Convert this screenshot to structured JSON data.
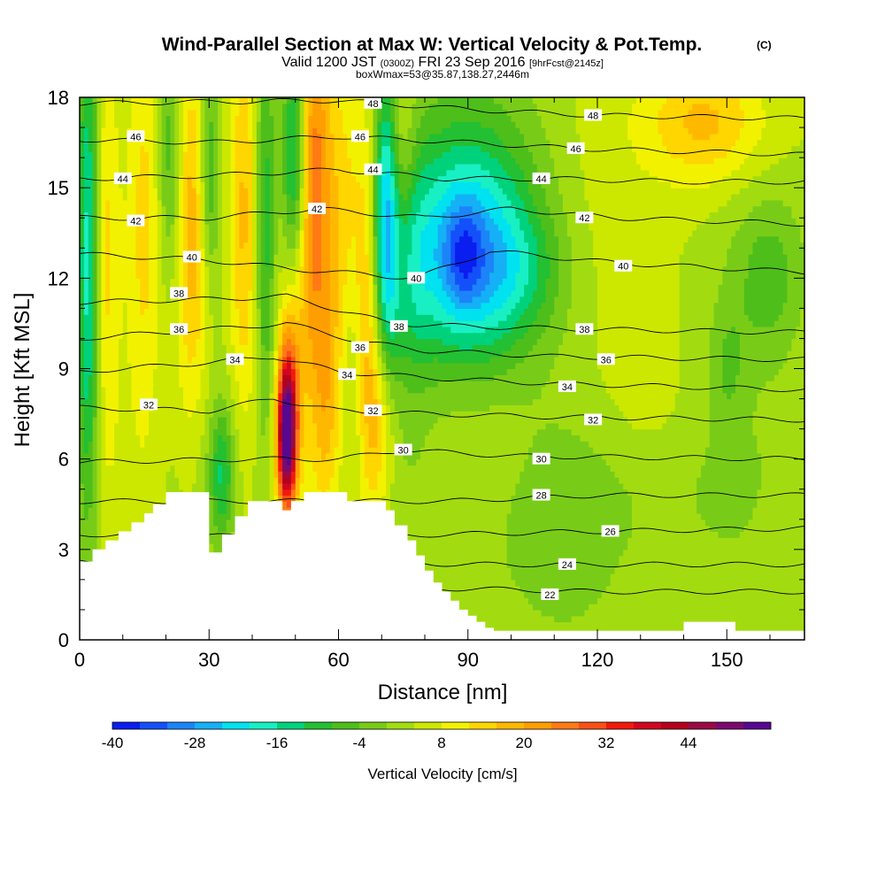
{
  "title": {
    "main": "Wind-Parallel Section at Max W: Vertical Velocity & Pot.Temp.",
    "copyright": "(C)",
    "line2_a": "Valid 1200 JST",
    "line2_b": "(0300Z)",
    "line2_c": "FRI 23 Sep 2016",
    "line2_d": "[9hrFcst@2145z]",
    "line3": "boxWmax=53@35.87,138.27,2446m"
  },
  "chart_data": {
    "type": "heatmap",
    "xlabel": "Distance [nm]",
    "ylabel": "Height [Kft MSL]",
    "xlim": [
      0,
      168
    ],
    "ylim": [
      0,
      18
    ],
    "x_ticks": [
      0,
      30,
      60,
      90,
      120,
      150
    ],
    "y_ticks": [
      0,
      3,
      6,
      9,
      12,
      15,
      18
    ],
    "colorbar": {
      "label": "Vertical Velocity [cm/s]",
      "levels": [
        -40,
        -36,
        -32,
        -28,
        -24,
        -20,
        -16,
        -12,
        -8,
        -4,
        0,
        4,
        8,
        12,
        16,
        20,
        24,
        28,
        32,
        36,
        40,
        44,
        48,
        52
      ],
      "tick_labels": [
        -40,
        -28,
        -16,
        -4,
        8,
        20,
        32,
        44
      ],
      "colors": [
        "#0a1ef0",
        "#1450fa",
        "#1c84f8",
        "#15b0f6",
        "#00e2f0",
        "#18f0c4",
        "#00d27c",
        "#22c032",
        "#4ebe1a",
        "#78cc18",
        "#a2dc10",
        "#cce800",
        "#f2f200",
        "#ffd600",
        "#ffb800",
        "#ff9e00",
        "#ff7a14",
        "#f85016",
        "#f21a0a",
        "#d00620",
        "#b4001c",
        "#9a0a42",
        "#7c0a6e",
        "#560890"
      ]
    },
    "terrain_profile": {
      "x": [
        0,
        3,
        3,
        6,
        6,
        9,
        9,
        12,
        12,
        15,
        15,
        17,
        17,
        20,
        20,
        30,
        30,
        33,
        33,
        36,
        36,
        39,
        39,
        47,
        47,
        49,
        49,
        52,
        52,
        62,
        62,
        71,
        71,
        73,
        73,
        76,
        76,
        78,
        78,
        80,
        80,
        82,
        82,
        84,
        84,
        86,
        86,
        88,
        88,
        90,
        90,
        92,
        92,
        94,
        94,
        96,
        96,
        98,
        98,
        140,
        140,
        152,
        152,
        168,
        168
      ],
      "y_kft": [
        2.6,
        2.6,
        3.0,
        3.0,
        3.3,
        3.3,
        3.6,
        3.6,
        3.9,
        3.9,
        4.2,
        4.2,
        4.5,
        4.5,
        4.9,
        4.9,
        2.9,
        2.9,
        3.5,
        3.5,
        4.1,
        4.1,
        4.6,
        4.6,
        4.3,
        4.3,
        4.6,
        4.6,
        4.9,
        4.9,
        4.6,
        4.6,
        4.3,
        4.3,
        3.8,
        3.8,
        3.3,
        3.3,
        2.8,
        2.8,
        2.3,
        2.3,
        1.9,
        1.9,
        1.6,
        1.6,
        1.3,
        1.3,
        1.0,
        1.0,
        0.8,
        0.8,
        0.6,
        0.6,
        0.4,
        0.4,
        0.3,
        0.3,
        0.3,
        0.3,
        0.6,
        0.6,
        0.3,
        0.3,
        0.6
      ]
    },
    "w_features": [
      {
        "x": 2,
        "y": 12.5,
        "sx": 1.8,
        "sy": 6,
        "w": -22
      },
      {
        "x": 6,
        "y": 13,
        "sx": 2.2,
        "sy": 5,
        "w": 10
      },
      {
        "x": 15,
        "y": 14,
        "sx": 3,
        "sy": 5,
        "w": 10
      },
      {
        "x": 21,
        "y": 16,
        "sx": 2,
        "sy": 3,
        "w": -12
      },
      {
        "x": 26,
        "y": 13.5,
        "sx": 3,
        "sy": 4.5,
        "w": 16
      },
      {
        "x": 30,
        "y": 15.5,
        "sx": 1.6,
        "sy": 2.5,
        "w": -14
      },
      {
        "x": 38,
        "y": 14,
        "sx": 2.5,
        "sy": 5,
        "w": 14
      },
      {
        "x": 33,
        "y": 5.5,
        "sx": 2,
        "sy": 1.5,
        "w": -14
      },
      {
        "x": 43,
        "y": 14,
        "sx": 1.6,
        "sy": 5,
        "w": -14
      },
      {
        "x": 48,
        "y": 6.8,
        "sx": 1.6,
        "sy": 1.8,
        "w": 52
      },
      {
        "x": 49,
        "y": 9.5,
        "sx": 2,
        "sy": 2.5,
        "w": 10
      },
      {
        "x": 50,
        "y": 16,
        "sx": 2,
        "sy": 3,
        "w": -24
      },
      {
        "x": 54,
        "y": 15,
        "sx": 3,
        "sy": 5,
        "w": 24
      },
      {
        "x": 61,
        "y": 12.5,
        "sx": 3,
        "sy": 5,
        "w": 12
      },
      {
        "x": 57,
        "y": 7.5,
        "sx": 2,
        "sy": 2.5,
        "w": 8
      },
      {
        "x": 63,
        "y": 9,
        "sx": 2,
        "sy": 3,
        "w": -8
      },
      {
        "x": 67,
        "y": 11,
        "sx": 2.5,
        "sy": 5,
        "w": 16
      },
      {
        "x": 70,
        "y": 7,
        "sx": 2.5,
        "sy": 2,
        "w": 10
      },
      {
        "x": 71,
        "y": 14,
        "sx": 2.2,
        "sy": 3.5,
        "w": -28
      },
      {
        "x": 74,
        "y": 16,
        "sx": 2.5,
        "sy": 3,
        "w": 10
      },
      {
        "x": 77,
        "y": 12,
        "sx": 3,
        "sy": 3,
        "w": -6
      },
      {
        "x": 90,
        "y": 12.6,
        "sx": 11,
        "sy": 2.6,
        "w": -28
      },
      {
        "x": 89,
        "y": 12.8,
        "sx": 3,
        "sy": 1.2,
        "w": -10
      },
      {
        "x": 102,
        "y": 12.2,
        "sx": 8,
        "sy": 1.4,
        "w": -6
      },
      {
        "x": 145,
        "y": 17.2,
        "sx": 10,
        "sy": 1.5,
        "w": 14
      },
      {
        "x": 90,
        "y": 16,
        "sx": 12,
        "sy": 3,
        "w": -6
      },
      {
        "x": 120,
        "y": 14,
        "sx": 10,
        "sy": 5,
        "w": 3
      },
      {
        "x": 160,
        "y": 12,
        "sx": 6,
        "sy": 2,
        "w": -9
      },
      {
        "x": 150,
        "y": 9,
        "sx": 3,
        "sy": 1.5,
        "w": -6
      },
      {
        "x": 110,
        "y": 3,
        "sx": 20,
        "sy": 2,
        "w": -4
      },
      {
        "x": 130,
        "y": 5,
        "sx": 20,
        "sy": 1.5,
        "w": -3
      }
    ],
    "theta_contours": [
      {
        "label": "22",
        "shown": true,
        "y_profile": [
          [
            0,
            1.7
          ],
          [
            60,
            1.7
          ],
          [
            90,
            1.7
          ],
          [
            120,
            1.6
          ],
          [
            168,
            1.6
          ]
        ]
      },
      {
        "label": "24",
        "shown": true,
        "y_profile": [
          [
            0,
            2.6
          ],
          [
            60,
            2.6
          ],
          [
            90,
            2.5
          ],
          [
            120,
            2.5
          ],
          [
            168,
            2.5
          ]
        ]
      },
      {
        "label": "26",
        "shown": true,
        "y_profile": [
          [
            0,
            3.5
          ],
          [
            60,
            3.4
          ],
          [
            85,
            3.5
          ],
          [
            120,
            3.6
          ],
          [
            168,
            3.7
          ]
        ]
      },
      {
        "label": "28",
        "shown": true,
        "y_profile": [
          [
            0,
            4.6
          ],
          [
            60,
            4.6
          ],
          [
            85,
            4.6
          ],
          [
            120,
            4.8
          ],
          [
            168,
            4.8
          ]
        ]
      },
      {
        "label": "30",
        "shown": true,
        "y_profile": [
          [
            0,
            5.9
          ],
          [
            40,
            6.0
          ],
          [
            60,
            6.0
          ],
          [
            75,
            6.3
          ],
          [
            100,
            6.1
          ],
          [
            168,
            6.0
          ]
        ]
      },
      {
        "label": "32",
        "shown": true,
        "y_profile": [
          [
            0,
            7.7
          ],
          [
            30,
            7.6
          ],
          [
            45,
            8.0
          ],
          [
            60,
            7.6
          ],
          [
            80,
            7.5
          ],
          [
            110,
            7.4
          ],
          [
            168,
            7.3
          ]
        ]
      },
      {
        "label": "34",
        "shown": true,
        "y_profile": [
          [
            0,
            8.9
          ],
          [
            30,
            9.2
          ],
          [
            45,
            9.4
          ],
          [
            60,
            8.9
          ],
          [
            80,
            8.7
          ],
          [
            110,
            8.5
          ],
          [
            168,
            8.3
          ]
        ]
      },
      {
        "label": "36",
        "shown": true,
        "y_profile": [
          [
            0,
            10.0
          ],
          [
            30,
            10.3
          ],
          [
            48,
            10.5
          ],
          [
            65,
            9.9
          ],
          [
            80,
            9.6
          ],
          [
            110,
            9.4
          ],
          [
            168,
            9.3
          ]
        ]
      },
      {
        "label": "38",
        "shown": true,
        "y_profile": [
          [
            0,
            11.2
          ],
          [
            30,
            11.3
          ],
          [
            48,
            11.4
          ],
          [
            72,
            10.5
          ],
          [
            90,
            10.4
          ],
          [
            120,
            10.3
          ],
          [
            168,
            10.2
          ]
        ]
      },
      {
        "label": "40",
        "shown": true,
        "y_profile": [
          [
            0,
            12.8
          ],
          [
            30,
            12.6
          ],
          [
            50,
            12.3
          ],
          [
            78,
            12.0
          ],
          [
            95,
            12.9
          ],
          [
            125,
            12.5
          ],
          [
            168,
            12.2
          ]
        ]
      },
      {
        "label": "42",
        "shown": true,
        "y_profile": [
          [
            0,
            14.0
          ],
          [
            30,
            14.0
          ],
          [
            55,
            14.3
          ],
          [
            80,
            14.0
          ],
          [
            100,
            14.3
          ],
          [
            125,
            14.0
          ],
          [
            168,
            13.8
          ]
        ]
      },
      {
        "label": "44",
        "shown": true,
        "y_profile": [
          [
            0,
            15.3
          ],
          [
            30,
            15.4
          ],
          [
            60,
            15.6
          ],
          [
            85,
            15.3
          ],
          [
            110,
            15.3
          ],
          [
            140,
            15.2
          ],
          [
            168,
            15.2
          ]
        ]
      },
      {
        "label": "46",
        "shown": true,
        "y_profile": [
          [
            0,
            16.6
          ],
          [
            30,
            16.5
          ],
          [
            60,
            16.7
          ],
          [
            90,
            16.5
          ],
          [
            115,
            16.3
          ],
          [
            168,
            16.1
          ]
        ]
      },
      {
        "label": "48",
        "shown": true,
        "y_profile": [
          [
            0,
            17.8
          ],
          [
            60,
            17.9
          ],
          [
            90,
            17.6
          ],
          [
            120,
            17.4
          ],
          [
            168,
            17.3
          ]
        ]
      }
    ],
    "contour_labels": [
      {
        "text": "22",
        "x": 109,
        "y": 1.5
      },
      {
        "text": "24",
        "x": 113,
        "y": 2.5
      },
      {
        "text": "26",
        "x": 123,
        "y": 3.6
      },
      {
        "text": "28",
        "x": 107,
        "y": 4.8
      },
      {
        "text": "30",
        "x": 107,
        "y": 6.0
      },
      {
        "text": "30",
        "x": 75,
        "y": 6.3
      },
      {
        "text": "32",
        "x": 119,
        "y": 7.3
      },
      {
        "text": "32",
        "x": 68,
        "y": 7.6
      },
      {
        "text": "32",
        "x": 16,
        "y": 7.8
      },
      {
        "text": "34",
        "x": 113,
        "y": 8.4
      },
      {
        "text": "34",
        "x": 62,
        "y": 8.8
      },
      {
        "text": "34",
        "x": 36,
        "y": 9.3
      },
      {
        "text": "36",
        "x": 122,
        "y": 9.3
      },
      {
        "text": "36",
        "x": 65,
        "y": 9.7
      },
      {
        "text": "36",
        "x": 23,
        "y": 10.3
      },
      {
        "text": "38",
        "x": 117,
        "y": 10.3
      },
      {
        "text": "38",
        "x": 74,
        "y": 10.4
      },
      {
        "text": "38",
        "x": 23,
        "y": 11.5
      },
      {
        "text": "40",
        "x": 126,
        "y": 12.4
      },
      {
        "text": "40",
        "x": 78,
        "y": 12.0
      },
      {
        "text": "40",
        "x": 26,
        "y": 12.7
      },
      {
        "text": "42",
        "x": 117,
        "y": 14.0
      },
      {
        "text": "42",
        "x": 55,
        "y": 14.3
      },
      {
        "text": "42",
        "x": 13,
        "y": 13.9
      },
      {
        "text": "44",
        "x": 107,
        "y": 15.3
      },
      {
        "text": "44",
        "x": 68,
        "y": 15.6
      },
      {
        "text": "44",
        "x": 10,
        "y": 15.3
      },
      {
        "text": "46",
        "x": 115,
        "y": 16.3
      },
      {
        "text": "46",
        "x": 65,
        "y": 16.7
      },
      {
        "text": "46",
        "x": 13,
        "y": 16.7
      },
      {
        "text": "48",
        "x": 119,
        "y": 17.4
      },
      {
        "text": "48",
        "x": 68,
        "y": 17.8
      }
    ]
  }
}
